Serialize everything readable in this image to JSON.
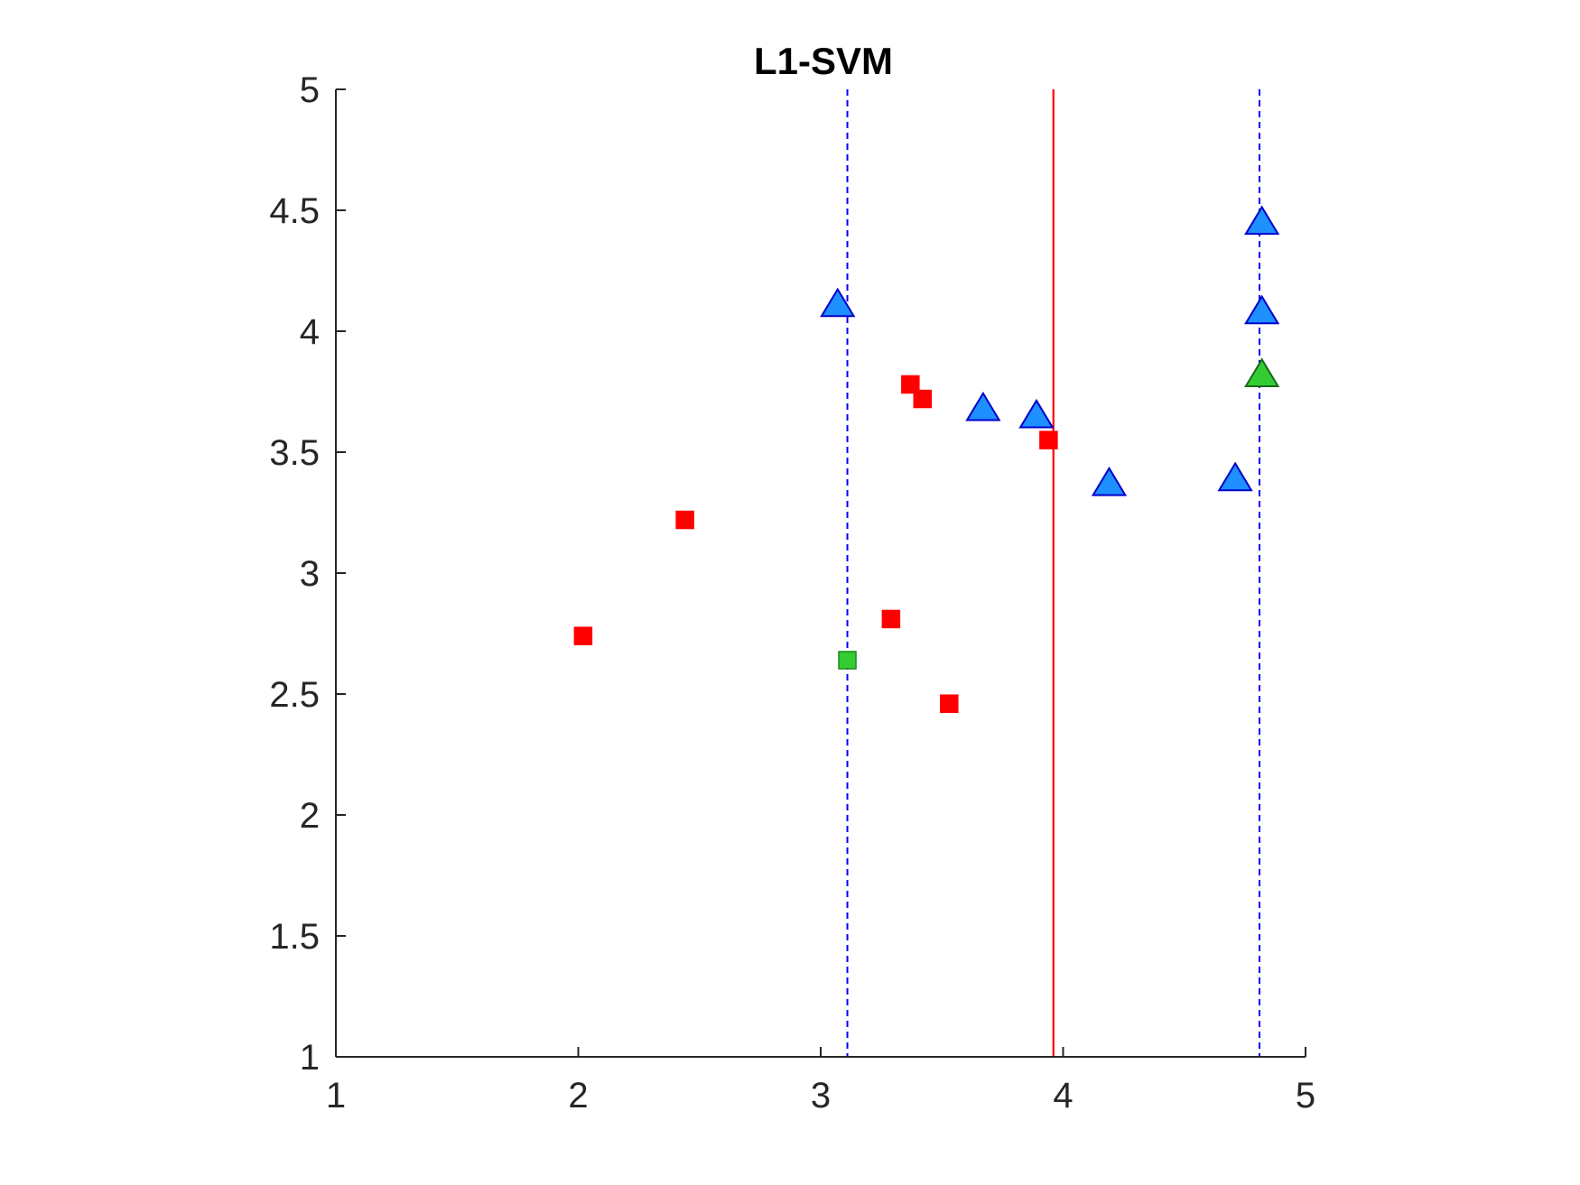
{
  "chart_data": {
    "type": "scatter",
    "title": "L1-SVM",
    "xlabel": "",
    "ylabel": "",
    "xlim": [
      1,
      5
    ],
    "ylim": [
      1,
      5
    ],
    "x_ticks": [
      "1",
      "2",
      "3",
      "4",
      "5"
    ],
    "y_ticks": [
      "1",
      "1.5",
      "2",
      "2.5",
      "3",
      "3.5",
      "4",
      "4.5",
      "5"
    ],
    "grid": false,
    "legend": "none",
    "series": [
      {
        "marker": "square",
        "color": "#ff0000",
        "points": [
          {
            "x": 2.02,
            "y": 2.74
          },
          {
            "x": 2.44,
            "y": 3.22
          },
          {
            "x": 3.29,
            "y": 2.81
          },
          {
            "x": 3.37,
            "y": 3.78
          },
          {
            "x": 3.42,
            "y": 3.72
          },
          {
            "x": 3.53,
            "y": 2.46
          },
          {
            "x": 3.94,
            "y": 3.55
          }
        ]
      },
      {
        "marker": "square",
        "color": "#33cc33",
        "points": [
          {
            "x": 3.11,
            "y": 2.64
          }
        ]
      },
      {
        "marker": "triangle",
        "color": "#1e90ff",
        "points": [
          {
            "x": 3.07,
            "y": 4.11
          },
          {
            "x": 3.67,
            "y": 3.68
          },
          {
            "x": 3.89,
            "y": 3.65
          },
          {
            "x": 4.19,
            "y": 3.37
          },
          {
            "x": 4.71,
            "y": 3.39
          },
          {
            "x": 4.82,
            "y": 4.45
          },
          {
            "x": 4.82,
            "y": 4.08
          }
        ]
      },
      {
        "marker": "triangle",
        "color": "#33cc33",
        "points": [
          {
            "x": 4.82,
            "y": 3.82
          }
        ]
      }
    ],
    "vertical_lines": [
      {
        "x": 3.11,
        "style": "dashed",
        "color": "#0000ff"
      },
      {
        "x": 3.96,
        "style": "solid",
        "color": "#ff0000"
      },
      {
        "x": 4.81,
        "style": "dashed",
        "color": "#0000ff"
      }
    ]
  }
}
